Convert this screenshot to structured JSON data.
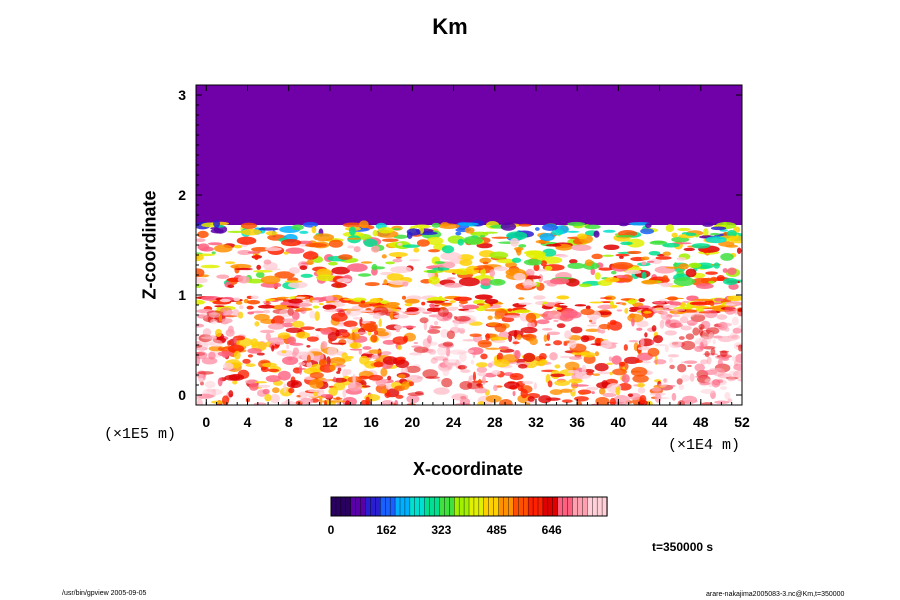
{
  "chart_data": {
    "type": "heatmap",
    "title": "Km",
    "xlabel": "X-coordinate",
    "ylabel": "Z-coordinate",
    "x_scale_note": "(×1E4 m)",
    "y_scale_note": "(×1E5 m)",
    "xlim": [
      -1,
      52
    ],
    "ylim": [
      -0.1,
      3.1
    ],
    "x_ticks": [
      "0",
      "4",
      "8",
      "12",
      "16",
      "20",
      "24",
      "28",
      "32",
      "36",
      "40",
      "44",
      "48",
      "52"
    ],
    "y_ticks": [
      "0",
      "1",
      "2",
      "3"
    ],
    "colorbar": {
      "min": 0,
      "max": 808,
      "tick_labels": [
        "0",
        "162",
        "323",
        "485",
        "646"
      ],
      "colors": [
        "#2a0060",
        "#5a00a8",
        "#2a1fd0",
        "#1a60ff",
        "#00b0ff",
        "#00e0d0",
        "#00e090",
        "#40e040",
        "#a0f000",
        "#e0f000",
        "#ffd000",
        "#ff9000",
        "#ff5000",
        "#ff2000",
        "#e00000",
        "#ff6080",
        "#ffa0b0",
        "#ffd0d8"
      ]
    },
    "regions": [
      {
        "z_range": [
          1.7,
          3.1
        ],
        "value": 0,
        "description_color": "#7000a8"
      },
      {
        "z_range": [
          1.1,
          1.7
        ],
        "value": "mixed"
      },
      {
        "z_range": [
          0.9,
          1.1
        ],
        "value": "mixed"
      },
      {
        "z_range": [
          -0.1,
          0.9
        ],
        "value": "mixed"
      }
    ]
  },
  "footer": {
    "time": "t=350000 s",
    "left_note": "/usr/bin/gpview 2005-09-05",
    "right_note": "arare-nakajima2005083-3.nc@Km,t=350000"
  }
}
